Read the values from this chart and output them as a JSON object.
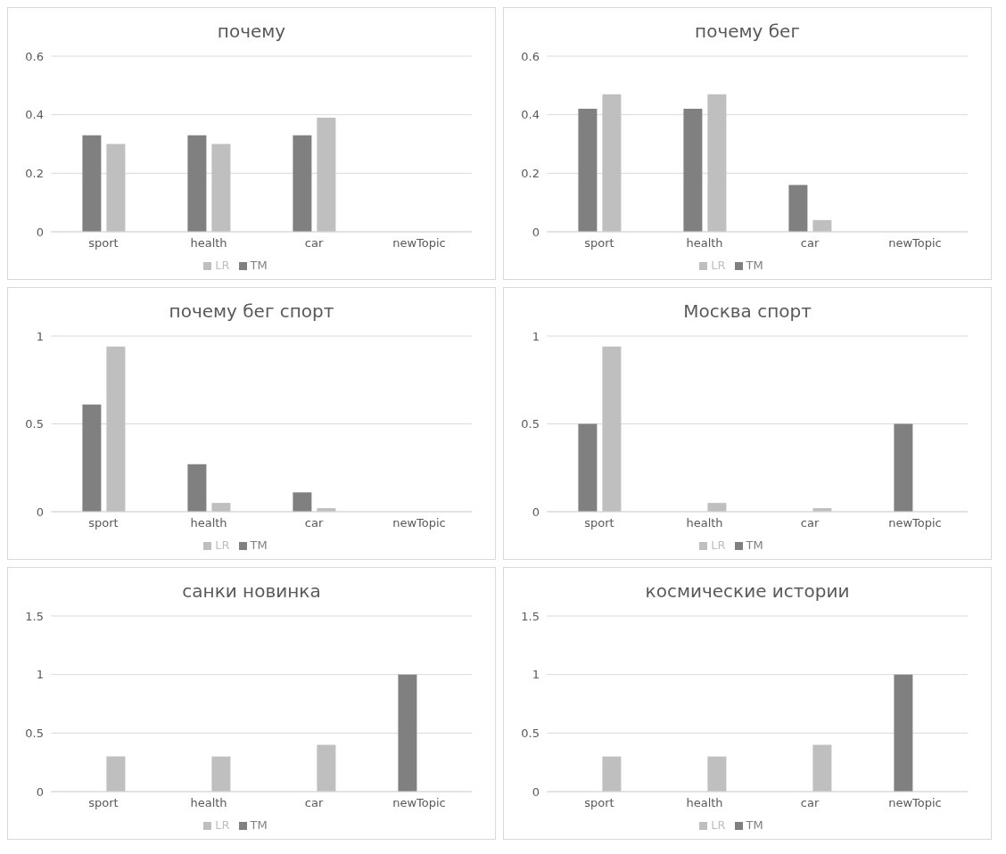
{
  "chart_data": [
    {
      "type": "bar",
      "title": "почему",
      "categories": [
        "sport",
        "health",
        "car",
        "newTopic"
      ],
      "series": [
        {
          "name": "TM",
          "color": "#808080",
          "values": [
            0.33,
            0.33,
            0.33,
            0
          ]
        },
        {
          "name": "LR",
          "color": "#bfbfbf",
          "values": [
            0.3,
            0.3,
            0.39,
            0
          ]
        }
      ],
      "ylim": [
        0,
        0.6
      ],
      "yticks": [
        0,
        0.2,
        0.4,
        0.6
      ],
      "grid": "y",
      "legend": "bottom"
    },
    {
      "type": "bar",
      "title": "почему бег",
      "categories": [
        "sport",
        "health",
        "car",
        "newTopic"
      ],
      "series": [
        {
          "name": "TM",
          "color": "#808080",
          "values": [
            0.42,
            0.42,
            0.16,
            0
          ]
        },
        {
          "name": "LR",
          "color": "#bfbfbf",
          "values": [
            0.47,
            0.47,
            0.04,
            0
          ]
        }
      ],
      "ylim": [
        0,
        0.6
      ],
      "yticks": [
        0,
        0.2,
        0.4,
        0.6
      ],
      "grid": "y",
      "legend": "bottom"
    },
    {
      "type": "bar",
      "title": "почему бег спорт",
      "categories": [
        "sport",
        "health",
        "car",
        "newTopic"
      ],
      "series": [
        {
          "name": "TM",
          "color": "#808080",
          "values": [
            0.61,
            0.27,
            0.11,
            0
          ]
        },
        {
          "name": "LR",
          "color": "#bfbfbf",
          "values": [
            0.94,
            0.05,
            0.02,
            0
          ]
        }
      ],
      "ylim": [
        0,
        1
      ],
      "yticks": [
        0,
        0.5,
        1
      ],
      "grid": "y",
      "legend": "bottom"
    },
    {
      "type": "bar",
      "title": "Москва спорт",
      "categories": [
        "sport",
        "health",
        "car",
        "newTopic"
      ],
      "series": [
        {
          "name": "TM",
          "color": "#808080",
          "values": [
            0.5,
            0,
            0,
            0.5
          ]
        },
        {
          "name": "LR",
          "color": "#bfbfbf",
          "values": [
            0.94,
            0.05,
            0.02,
            0
          ]
        }
      ],
      "ylim": [
        0,
        1
      ],
      "yticks": [
        0,
        0.5,
        1
      ],
      "grid": "y",
      "legend": "bottom"
    },
    {
      "type": "bar",
      "title": "санки новинка",
      "categories": [
        "sport",
        "health",
        "car",
        "newTopic"
      ],
      "series": [
        {
          "name": "TM",
          "color": "#808080",
          "values": [
            0,
            0,
            0,
            1
          ]
        },
        {
          "name": "LR",
          "color": "#bfbfbf",
          "values": [
            0.3,
            0.3,
            0.4,
            0
          ]
        }
      ],
      "ylim": [
        0,
        1.5
      ],
      "yticks": [
        0,
        0.5,
        1,
        1.5
      ],
      "grid": "y",
      "legend": "bottom"
    },
    {
      "type": "bar",
      "title": "космические истории",
      "categories": [
        "sport",
        "health",
        "car",
        "newTopic"
      ],
      "series": [
        {
          "name": "TM",
          "color": "#808080",
          "values": [
            0,
            0,
            0,
            1
          ]
        },
        {
          "name": "LR",
          "color": "#bfbfbf",
          "values": [
            0.3,
            0.3,
            0.4,
            0
          ]
        }
      ],
      "ylim": [
        0,
        1.5
      ],
      "yticks": [
        0,
        0.5,
        1,
        1.5
      ],
      "grid": "y",
      "legend": "bottom"
    }
  ]
}
